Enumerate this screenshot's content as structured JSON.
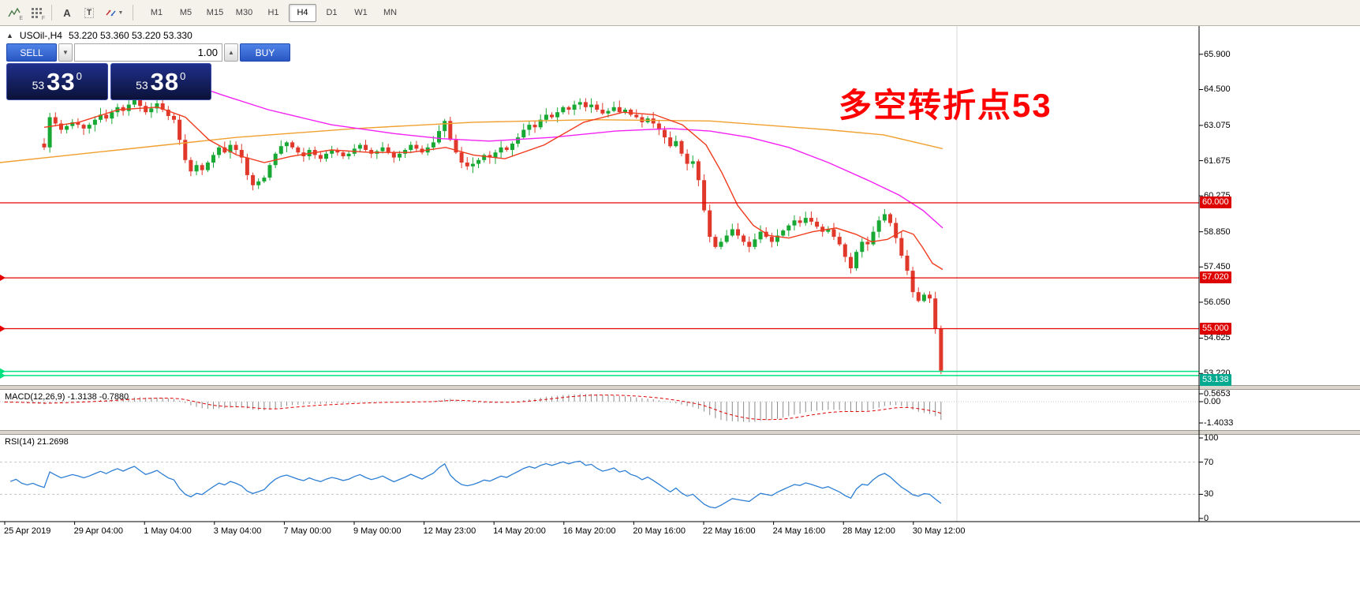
{
  "toolbar": {
    "icon_buttons": [
      {
        "sub": "E"
      },
      {
        "sub": "F"
      },
      {
        "glyph": "A"
      },
      {
        "glyph": "T"
      },
      {
        "caret": "▼"
      }
    ],
    "timeframes": [
      "M1",
      "M5",
      "M15",
      "M30",
      "H1",
      "H4",
      "D1",
      "W1",
      "MN"
    ],
    "active_timeframe": "H4"
  },
  "symbol_bar": {
    "collapse_glyph": "▲",
    "title": "USOil-,H4",
    "ohlc": "53.220 53.360 53.220 53.330"
  },
  "trade_panel": {
    "sell_label": "SELL",
    "buy_label": "BUY",
    "volume": "1.00",
    "spin_down_glyph": "▼",
    "spin_up_glyph": "▲",
    "sell_price": {
      "prefix": "53",
      "big": "33",
      "sup": "0"
    },
    "buy_price": {
      "prefix": "53",
      "big": "38",
      "sup": "0"
    }
  },
  "annotation": {
    "text": "多空转折点53",
    "color": "#FF0000"
  },
  "macd": {
    "name": "MACD(12,26,9)",
    "value_main": "-1.3138",
    "value_signal": "-0.7880",
    "axis_labels": [
      "0.5653",
      "0.00",
      "-1.4033"
    ]
  },
  "rsi": {
    "name": "RSI(14)",
    "value": "21.2698",
    "axis_labels": [
      "100",
      "70",
      "30",
      "0"
    ],
    "axis_values": [
      100,
      70,
      30,
      0
    ],
    "levels": [
      70,
      30
    ]
  },
  "time_axis": [
    "25 Apr 2019",
    "29 Apr 04:00",
    "1 May 04:00",
    "3 May 04:00",
    "7 May 00:00",
    "9 May 00:00",
    "12 May 23:00",
    "14 May 20:00",
    "16 May 20:00",
    "20 May 16:00",
    "22 May 16:00",
    "24 May 16:00",
    "28 May 12:00",
    "30 May 12:00"
  ],
  "chart_data": {
    "type": "candlestick",
    "symbol": "USOil-",
    "timeframe": "H4",
    "ohlc_display": {
      "open": "53.220",
      "high": "53.360",
      "low": "53.220",
      "close": "53.330"
    },
    "price_axis_ticks": [
      "65.900",
      "64.500",
      "63.075",
      "61.675",
      "60.275",
      "58.850",
      "57.450",
      "56.050",
      "54.625",
      "53.220"
    ],
    "candle_up": "#18A834",
    "candle_down": "#E0392B",
    "pre_closes": [
      63.0,
      63.2,
      62.9,
      63.1,
      63.3,
      63.0,
      62.8,
      63.1,
      62.9,
      62.7,
      62.9,
      63.05,
      62.8,
      62.6,
      62.75,
      62.9,
      62.6,
      62.45,
      62.55,
      62.35
    ],
    "closes": [
      62.2,
      63.4,
      63.15,
      62.9,
      63.05,
      63.2,
      63.1,
      62.95,
      63.1,
      63.3,
      63.5,
      63.35,
      63.6,
      63.8,
      63.65,
      63.9,
      64.1,
      63.85,
      63.6,
      63.75,
      63.95,
      63.7,
      63.45,
      63.3,
      62.5,
      61.7,
      61.25,
      61.5,
      61.3,
      61.6,
      61.9,
      62.2,
      62.0,
      62.3,
      62.1,
      61.8,
      61.1,
      60.7,
      60.85,
      61.0,
      61.5,
      61.95,
      62.25,
      62.4,
      62.2,
      62.0,
      61.85,
      62.1,
      61.9,
      61.75,
      61.95,
      62.1,
      62.0,
      61.85,
      61.95,
      62.15,
      62.3,
      62.1,
      61.95,
      62.05,
      62.2,
      62.0,
      61.8,
      61.95,
      62.1,
      62.3,
      62.15,
      62.0,
      62.2,
      62.4,
      62.85,
      63.25,
      62.5,
      62.0,
      61.6,
      61.45,
      61.55,
      61.7,
      61.9,
      61.8,
      62.0,
      62.2,
      62.1,
      62.35,
      62.6,
      62.9,
      63.1,
      63.0,
      63.3,
      63.5,
      63.4,
      63.6,
      63.8,
      63.7,
      63.9,
      64.0,
      63.8,
      63.9,
      63.7,
      63.55,
      63.65,
      63.8,
      63.6,
      63.7,
      63.5,
      63.4,
      63.2,
      63.35,
      63.15,
      62.9,
      62.6,
      62.25,
      62.45,
      61.95,
      61.55,
      61.65,
      60.9,
      59.7,
      58.65,
      58.25,
      58.45,
      58.7,
      58.95,
      58.7,
      58.45,
      58.25,
      58.55,
      58.85,
      58.65,
      58.45,
      58.7,
      58.9,
      59.1,
      59.3,
      59.2,
      59.4,
      59.25,
      59.05,
      58.85,
      58.95,
      58.65,
      58.35,
      57.85,
      57.4,
      58.05,
      58.45,
      58.35,
      58.85,
      59.3,
      59.55,
      59.2,
      58.6,
      57.9,
      57.3,
      56.45,
      56.1,
      56.35,
      56.2,
      55.0,
      53.33
    ],
    "moving_averages": [
      {
        "name": "ma-slow-orange",
        "color": "#F0A030",
        "points": [
          [
            0,
            61.6
          ],
          [
            150,
            62.1
          ],
          [
            300,
            62.6
          ],
          [
            450,
            62.95
          ],
          [
            600,
            63.2
          ],
          [
            750,
            63.3
          ],
          [
            900,
            63.25
          ],
          [
            1050,
            62.9
          ],
          [
            1120,
            62.7
          ],
          [
            1195,
            62.15
          ]
        ]
      },
      {
        "name": "ma-medium-magenta",
        "color": "#F321F3",
        "points": [
          [
            230,
            64.85
          ],
          [
            280,
            64.3
          ],
          [
            340,
            63.7
          ],
          [
            420,
            63.1
          ],
          [
            500,
            62.75
          ],
          [
            560,
            62.55
          ],
          [
            620,
            62.45
          ],
          [
            700,
            62.6
          ],
          [
            780,
            62.85
          ],
          [
            850,
            62.95
          ],
          [
            900,
            62.85
          ],
          [
            950,
            62.6
          ],
          [
            1000,
            62.2
          ],
          [
            1050,
            61.6
          ],
          [
            1100,
            60.9
          ],
          [
            1140,
            60.3
          ],
          [
            1170,
            59.7
          ],
          [
            1195,
            59.0
          ]
        ]
      },
      {
        "name": "ma-fast-red",
        "color": "#F03B1E",
        "points": [
          [
            56,
            63.0
          ],
          [
            100,
            63.2
          ],
          [
            150,
            63.7
          ],
          [
            200,
            63.8
          ],
          [
            235,
            63.4
          ],
          [
            265,
            62.5
          ],
          [
            300,
            61.9
          ],
          [
            335,
            61.6
          ],
          [
            370,
            61.85
          ],
          [
            420,
            62.1
          ],
          [
            470,
            62.0
          ],
          [
            520,
            62.0
          ],
          [
            565,
            62.2
          ],
          [
            600,
            61.9
          ],
          [
            640,
            61.75
          ],
          [
            690,
            62.3
          ],
          [
            740,
            63.2
          ],
          [
            790,
            63.6
          ],
          [
            830,
            63.5
          ],
          [
            865,
            63.1
          ],
          [
            895,
            62.3
          ],
          [
            915,
            61.2
          ],
          [
            935,
            59.9
          ],
          [
            955,
            59.1
          ],
          [
            975,
            58.7
          ],
          [
            1000,
            58.6
          ],
          [
            1030,
            58.85
          ],
          [
            1060,
            59.0
          ],
          [
            1085,
            58.75
          ],
          [
            1105,
            58.45
          ],
          [
            1125,
            58.55
          ],
          [
            1145,
            58.9
          ],
          [
            1158,
            58.75
          ],
          [
            1170,
            58.2
          ],
          [
            1182,
            57.6
          ],
          [
            1195,
            57.35
          ]
        ]
      }
    ],
    "h_line_color": "#E60000",
    "h_line_badge": "#DE0000",
    "h_lines": [
      {
        "price": 60.0,
        "label": "60.000",
        "left_marker": false
      },
      {
        "price": 57.02,
        "label": "57.020",
        "left_marker": true
      },
      {
        "price": 55.0,
        "label": "55.000",
        "left_marker": true
      }
    ],
    "support_band": {
      "lines": [
        53.305,
        53.138
      ],
      "label": "53.138",
      "line_color": "#00E27E",
      "badge_color": "#00A98F",
      "left_marker": true
    },
    "macd_hist_color": "#8C8C8C",
    "macd_signal_color": "#E00000",
    "rsi_color": "#2D7FD4"
  }
}
